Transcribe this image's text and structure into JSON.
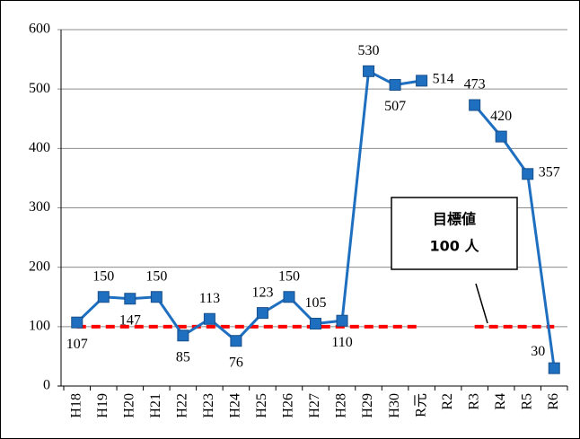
{
  "chart_data": {
    "type": "line",
    "categories": [
      "H18",
      "H19",
      "H20",
      "H21",
      "H22",
      "H23",
      "H24",
      "H25",
      "H26",
      "H27",
      "H28",
      "H29",
      "H30",
      "R元",
      "R2",
      "R3",
      "R4",
      "R5",
      "R6"
    ],
    "series": [
      {
        "color": "#1f6fc0",
        "values": [
          107,
          150,
          147,
          150,
          85,
          113,
          76,
          123,
          150,
          105,
          110,
          530,
          507,
          514,
          null,
          473,
          420,
          357,
          30
        ]
      },
      {
        "color": "#ff0000",
        "values": [
          100,
          100,
          100,
          100,
          100,
          100,
          100,
          100,
          100,
          100,
          100,
          100,
          100,
          100,
          null,
          100,
          100,
          100,
          100
        ]
      }
    ],
    "ylim": [
      0,
      600
    ],
    "yticks": [
      0,
      100,
      200,
      300,
      400,
      500,
      600
    ],
    "grid": true,
    "annotation": [
      "目標値",
      "100 人"
    ]
  }
}
